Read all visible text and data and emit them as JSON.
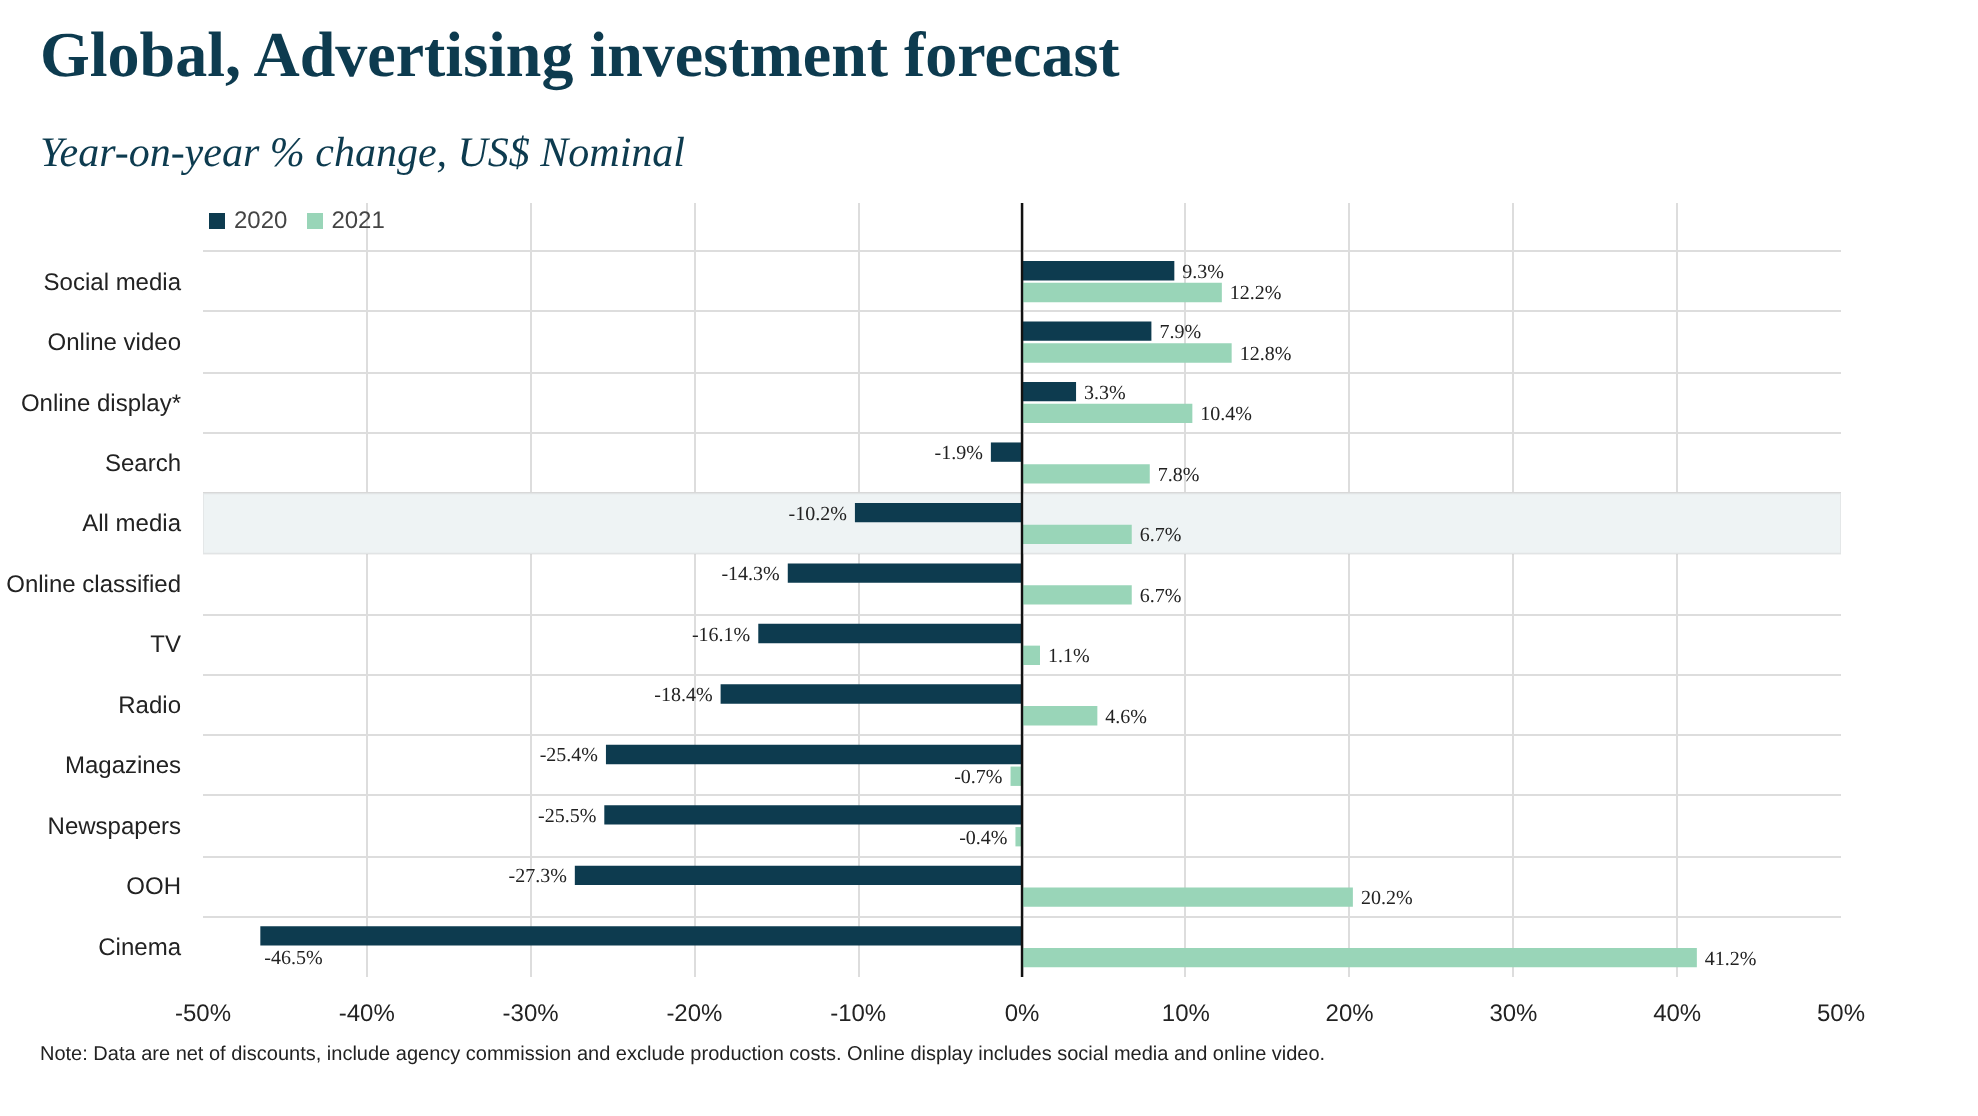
{
  "chart_data": {
    "type": "bar",
    "orientation": "horizontal",
    "title": "Global, Advertising investment forecast",
    "subtitle": "Year-on-year % change, US$ Nominal",
    "categories": [
      "Social media",
      "Online video",
      "Online display*",
      "Search",
      "All media",
      "Online classified",
      "TV",
      "Radio",
      "Magazines",
      "Newspapers",
      "OOH",
      "Cinema"
    ],
    "series": [
      {
        "name": "2020",
        "color": "#0d3b4f",
        "values": [
          9.3,
          7.9,
          3.3,
          -1.9,
          -10.2,
          -14.3,
          -16.1,
          -18.4,
          -25.4,
          -25.5,
          -27.3,
          -46.5
        ],
        "value_labels": [
          "9.3%",
          "7.9%",
          "3.3%",
          "-1.9%",
          "-10.2%",
          "-14.3%",
          "-16.1%",
          "-18.4%",
          "-25.4%",
          "-25.5%",
          "-27.3%",
          "-46.5%"
        ]
      },
      {
        "name": "2021",
        "color": "#99d5b8",
        "values": [
          12.2,
          12.8,
          10.4,
          7.8,
          6.7,
          6.7,
          1.1,
          4.6,
          -0.7,
          -0.4,
          20.2,
          41.2
        ],
        "value_labels": [
          "12.2%",
          "12.8%",
          "10.4%",
          "7.8%",
          "6.7%",
          "6.7%",
          "1.1%",
          "4.6%",
          "-0.7%",
          "-0.4%",
          "20.2%",
          "41.2%"
        ]
      }
    ],
    "xlim": [
      -50,
      50
    ],
    "xticks": [
      {
        "value": -50,
        "label": "-50%"
      },
      {
        "value": -40,
        "label": "-40%"
      },
      {
        "value": -30,
        "label": "-30%"
      },
      {
        "value": -20,
        "label": "-20%"
      },
      {
        "value": -10,
        "label": "-10%"
      },
      {
        "value": 0,
        "label": "0%"
      },
      {
        "value": 10,
        "label": "10%"
      },
      {
        "value": 20,
        "label": "20%"
      },
      {
        "value": 30,
        "label": "30%"
      },
      {
        "value": 40,
        "label": "40%"
      },
      {
        "value": 50,
        "label": "50%"
      }
    ],
    "bands": [
      {
        "axis": "y",
        "from": "All media",
        "to": "All media",
        "color": "#eef3f4"
      }
    ],
    "grid": true,
    "legend": "top left",
    "annotations": [
      "Note: Data are net of discounts, include agency commission and exclude production costs. Online display includes social media and online video."
    ]
  }
}
